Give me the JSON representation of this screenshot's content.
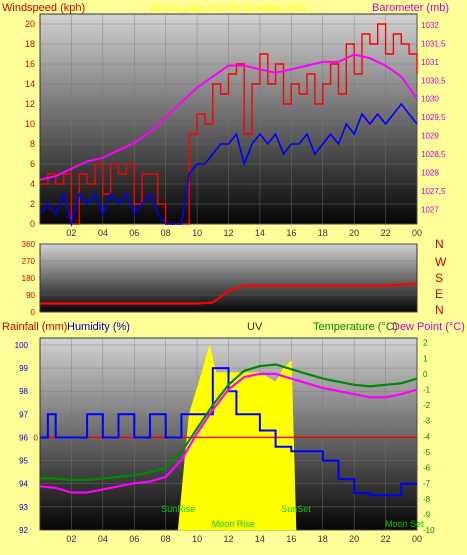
{
  "header": {
    "left_label": "Windspeed (kph)",
    "center_label": "24 hour graph from 06 December 2016",
    "right_label": "Barometer (mb)"
  },
  "direction_labels": [
    "N",
    "W",
    "S",
    "E",
    "N"
  ],
  "bottom_header": {
    "rainfall": "Rainfall (mm)",
    "humidity": "Humidity (%)",
    "uv": "UV",
    "temperature": "Temperature (°C)",
    "dewpoint": "Dew Point (°C)"
  },
  "colors": {
    "background": "#ffff99",
    "wind_gust": "#ff0000",
    "wind_avg": "#0000ff",
    "barometer": "#ff00ff",
    "direction": "#ff0000",
    "uv": "#ffff00",
    "solar": "#999999",
    "temperature": "#008800",
    "dewpoint": "#ff00ff",
    "humidity": "#0000ff",
    "rain": "#ff0000",
    "sun_label": "#00cc00"
  },
  "chart_data": [
    {
      "type": "line",
      "name": "wind-barometer",
      "x_ticks": [
        "02",
        "04",
        "06",
        "08",
        "10",
        "12",
        "14",
        "16",
        "18",
        "20",
        "22",
        "00"
      ],
      "y_left": {
        "label": "Windspeed (kph)",
        "ticks": [
          0,
          2,
          4,
          6,
          8,
          10,
          12,
          14,
          16,
          18,
          20
        ],
        "range": [
          0,
          21
        ]
      },
      "y_right": {
        "label": "Barometer (mb)",
        "ticks": [
          "1027",
          "1027,5",
          "1028",
          "1028,5",
          "1029",
          "1029,5",
          "1030",
          "1030,5",
          "1031",
          "1031,5",
          "1032"
        ],
        "range": [
          1026.6,
          1032.3
        ]
      },
      "x_range": [
        0,
        24
      ],
      "series": [
        {
          "role": "gust",
          "x": [
            0,
            0.5,
            1,
            1.5,
            2,
            2.5,
            3,
            3.5,
            4,
            4.5,
            5,
            5.5,
            6,
            6.5,
            7,
            7.5,
            8,
            8.5,
            9,
            9.5,
            10,
            10.5,
            11,
            11.5,
            12,
            12.5,
            13,
            13.5,
            14,
            14.5,
            15,
            15.5,
            16,
            16.5,
            17,
            17.5,
            18,
            18.5,
            19,
            19.5,
            20,
            20.5,
            21,
            21.5,
            22,
            22.5,
            23,
            23.5,
            24
          ],
          "values": [
            4,
            5,
            4,
            5,
            0,
            5,
            4,
            6,
            3,
            6,
            5,
            6,
            2,
            5,
            5,
            2,
            0,
            0,
            0,
            9,
            11,
            10,
            14,
            13,
            15,
            16,
            9,
            14,
            17,
            14,
            16,
            12,
            14,
            13,
            15,
            12,
            14,
            16,
            13,
            18,
            15,
            19,
            18,
            20,
            17,
            19,
            18,
            17,
            15
          ]
        },
        {
          "role": "average",
          "x": [
            0,
            0.5,
            1,
            1.5,
            2,
            2.5,
            3,
            3.5,
            4,
            4.5,
            5,
            5.5,
            6,
            6.5,
            7,
            7.5,
            8,
            8.5,
            9,
            9.5,
            10,
            10.5,
            11,
            11.5,
            12,
            12.5,
            13,
            13.5,
            14,
            14.5,
            15,
            15.5,
            16,
            16.5,
            17,
            17.5,
            18,
            18.5,
            19,
            19.5,
            20,
            20.5,
            21,
            21.5,
            22,
            22.5,
            23,
            23.5,
            24
          ],
          "values": [
            1,
            2,
            1,
            3,
            0,
            3,
            2,
            3,
            1,
            3,
            2,
            3,
            1,
            2,
            3,
            1,
            0,
            0,
            0,
            5,
            6,
            6,
            7,
            8,
            8,
            9,
            6,
            8,
            9,
            8,
            9,
            7,
            8,
            8,
            9,
            7,
            8,
            9,
            8,
            10,
            9,
            11,
            10,
            11,
            10,
            11,
            12,
            11,
            10
          ]
        },
        {
          "role": "barometer",
          "x": [
            0,
            1,
            2,
            3,
            4,
            5,
            6,
            7,
            8,
            9,
            10,
            11,
            12,
            13,
            14,
            15,
            16,
            17,
            18,
            19,
            20,
            21,
            22,
            23,
            24
          ],
          "values": [
            1027.8,
            1027.9,
            1028.1,
            1028.3,
            1028.4,
            1028.6,
            1028.8,
            1029.1,
            1029.5,
            1029.9,
            1030.3,
            1030.6,
            1030.9,
            1030.9,
            1030.8,
            1030.7,
            1030.8,
            1030.9,
            1031.0,
            1031.0,
            1031.2,
            1031.1,
            1030.9,
            1030.6,
            1030.0
          ]
        }
      ]
    },
    {
      "type": "line",
      "name": "wind-direction",
      "y_ticks": [
        0,
        90,
        180,
        270,
        360
      ],
      "y_range": [
        0,
        360
      ],
      "x_range": [
        0,
        24
      ],
      "series": [
        {
          "role": "direction",
          "x": [
            0,
            4,
            8,
            10,
            11,
            12,
            13,
            14,
            16,
            18,
            20,
            22,
            24
          ],
          "values": [
            45,
            45,
            45,
            45,
            50,
            110,
            140,
            140,
            140,
            140,
            140,
            140,
            150
          ]
        }
      ]
    },
    {
      "type": "line",
      "name": "temp-humidity-uv",
      "y_left": {
        "label": "Humidity (%)",
        "ticks": [
          92,
          93,
          94,
          95,
          96,
          97,
          98,
          99,
          100
        ],
        "range": [
          92,
          100.3
        ]
      },
      "rain_axis": {
        "label": "Rainfall (mm)",
        "ticks": [
          0
        ],
        "value": 96
      },
      "y_right": {
        "label": "Temperature (°C)",
        "ticks": [
          2,
          1,
          0,
          -1,
          -2,
          -3,
          -4,
          -5,
          -6,
          -7,
          -8,
          -9,
          -10
        ],
        "range": [
          -10,
          2.3
        ]
      },
      "x_range": [
        0,
        24
      ],
      "annotations": [
        "SunRise",
        "SunSet",
        "Moon Rise",
        "Moon Set"
      ],
      "series": [
        {
          "role": "uv",
          "x": [
            8.8,
            9.5,
            10.3,
            10.8,
            11.2,
            12,
            14,
            15,
            15.5,
            16,
            16.3
          ],
          "values": [
            92,
            97,
            98.8,
            100,
            98.8,
            98.8,
            98.8,
            98.4,
            99,
            99.3,
            92
          ]
        },
        {
          "role": "humidity",
          "x": [
            0,
            0.5,
            1,
            2,
            3,
            4,
            5,
            6,
            7,
            8,
            9,
            10,
            11,
            12,
            12.5,
            13,
            14,
            15,
            16,
            17,
            18,
            19,
            20,
            21,
            22,
            23,
            24
          ],
          "values": [
            96,
            97,
            96,
            96,
            97,
            96,
            97,
            96,
            97,
            96,
            97,
            97,
            99,
            98,
            97,
            97,
            96.3,
            95.6,
            95.4,
            95.4,
            95,
            94.2,
            93.6,
            93.5,
            93.5,
            94,
            94
          ]
        },
        {
          "role": "temperature",
          "x": [
            0,
            1,
            2,
            3,
            4,
            5,
            6,
            7,
            8,
            9,
            10,
            11,
            12,
            13,
            14,
            15,
            16,
            17,
            18,
            19,
            20,
            21,
            22,
            23,
            24
          ],
          "values": [
            -6.7,
            -6.7,
            -6.8,
            -6.8,
            -6.7,
            -6.6,
            -6.5,
            -6.3,
            -6.0,
            -5.0,
            -3.5,
            -2.0,
            -0.7,
            0.2,
            0.5,
            0.6,
            0.3,
            0.0,
            -0.3,
            -0.5,
            -0.7,
            -0.8,
            -0.7,
            -0.6,
            -0.3
          ]
        },
        {
          "role": "dewpoint",
          "x": [
            0,
            1,
            2,
            3,
            4,
            5,
            6,
            7,
            8,
            9,
            10,
            11,
            12,
            13,
            14,
            15,
            16,
            17,
            18,
            19,
            20,
            21,
            22,
            23,
            24
          ],
          "values": [
            -7.2,
            -7.3,
            -7.6,
            -7.6,
            -7.4,
            -7.2,
            -7.0,
            -6.9,
            -6.6,
            -5.5,
            -3.8,
            -2.3,
            -1.0,
            -0.2,
            0.0,
            0.0,
            -0.3,
            -0.6,
            -0.9,
            -1.1,
            -1.3,
            -1.5,
            -1.5,
            -1.3,
            -1.0
          ]
        },
        {
          "role": "rain",
          "x": [
            0,
            24
          ],
          "values": [
            0,
            0
          ]
        }
      ]
    }
  ]
}
